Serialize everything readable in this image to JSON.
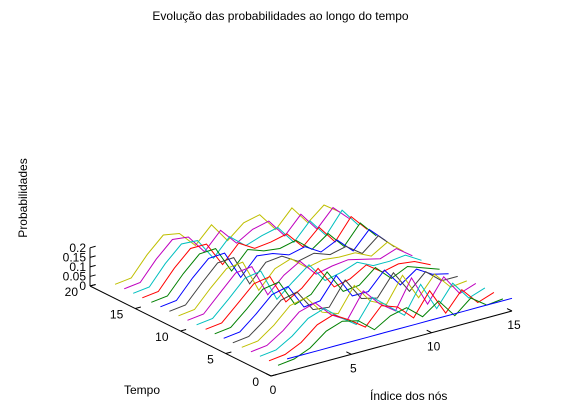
{
  "chart_data": {
    "type": "line",
    "projection": "3d",
    "title": "Evolução das probabilidades ao longo do tempo",
    "xlabel": "Índice dos nós",
    "ylabel": "Tempo",
    "zlabel": "Probabilidades",
    "xlim": [
      0,
      15
    ],
    "ylim": [
      0,
      20
    ],
    "zlim": [
      0,
      0.2
    ],
    "x_ticks": [
      "0",
      "5",
      "10",
      "15"
    ],
    "y_ticks": [
      "0",
      "5",
      "10",
      "15",
      "20"
    ],
    "z_ticks": [
      "0",
      "0.05",
      "0.1",
      "0.15",
      "0.2"
    ],
    "grid": false,
    "x": [
      1,
      2,
      3,
      4,
      5,
      6,
      7,
      8,
      9,
      10,
      11,
      12,
      13,
      14,
      15
    ],
    "series_colors": [
      "#0000ff",
      "#008000",
      "#ff0000",
      "#00bfbf",
      "#bf00bf",
      "#bfbf00",
      "#404040"
    ],
    "series": [
      {
        "t": 0,
        "values": [
          0.0667,
          0.0667,
          0.0667,
          0.0667,
          0.0667,
          0.0667,
          0.0667,
          0.0667,
          0.0667,
          0.0667,
          0.0667,
          0.0667,
          0.0667,
          0.0667,
          0.0667
        ]
      },
      {
        "t": 1,
        "values": [
          0.01,
          0.02,
          0.055,
          0.12,
          0.15,
          0.13,
          0.06,
          0.11,
          0.13,
          0.06,
          0.12,
          0.02,
          0.09,
          0.03,
          0.04
        ]
      },
      {
        "t": 2,
        "values": [
          0.01,
          0.02,
          0.06,
          0.13,
          0.16,
          0.11,
          0.05,
          0.14,
          0.11,
          0.03,
          0.15,
          0.01,
          0.11,
          0.02,
          0.05
        ]
      },
      {
        "t": 3,
        "values": [
          0.01,
          0.02,
          0.07,
          0.14,
          0.17,
          0.1,
          0.04,
          0.16,
          0.09,
          0.02,
          0.16,
          0.01,
          0.12,
          0.02,
          0.05
        ]
      },
      {
        "t": 4,
        "values": [
          0.01,
          0.02,
          0.075,
          0.15,
          0.175,
          0.09,
          0.04,
          0.17,
          0.08,
          0.02,
          0.17,
          0.01,
          0.13,
          0.02,
          0.05
        ]
      },
      {
        "t": 5,
        "values": [
          0.01,
          0.02,
          0.08,
          0.16,
          0.18,
          0.08,
          0.05,
          0.175,
          0.07,
          0.03,
          0.16,
          0.02,
          0.12,
          0.03,
          0.04
        ]
      },
      {
        "t": 6,
        "values": [
          0.01,
          0.02,
          0.085,
          0.165,
          0.185,
          0.07,
          0.06,
          0.18,
          0.06,
          0.04,
          0.15,
          0.03,
          0.11,
          0.04,
          0.04
        ]
      },
      {
        "t": 7,
        "values": [
          0.01,
          0.02,
          0.09,
          0.17,
          0.19,
          0.06,
          0.07,
          0.18,
          0.05,
          0.05,
          0.14,
          0.04,
          0.1,
          0.05,
          0.03
        ]
      },
      {
        "t": 8,
        "values": [
          0.01,
          0.02,
          0.095,
          0.175,
          0.19,
          0.05,
          0.08,
          0.175,
          0.05,
          0.06,
          0.13,
          0.05,
          0.09,
          0.06,
          0.03
        ]
      },
      {
        "t": 9,
        "values": [
          0.01,
          0.02,
          0.1,
          0.18,
          0.195,
          0.04,
          0.09,
          0.17,
          0.05,
          0.07,
          0.12,
          0.06,
          0.08,
          0.07,
          0.03
        ]
      },
      {
        "t": 10,
        "values": [
          0.01,
          0.02,
          0.1,
          0.185,
          0.2,
          0.03,
          0.1,
          0.165,
          0.06,
          0.08,
          0.11,
          0.07,
          0.07,
          0.08,
          0.03
        ]
      },
      {
        "t": 11,
        "values": [
          0.01,
          0.02,
          0.105,
          0.19,
          0.2,
          0.03,
          0.11,
          0.16,
          0.07,
          0.09,
          0.1,
          0.08,
          0.06,
          0.09,
          0.03
        ]
      },
      {
        "t": 12,
        "values": [
          0.01,
          0.02,
          0.11,
          0.19,
          0.2,
          0.03,
          0.12,
          0.15,
          0.08,
          0.1,
          0.09,
          0.09,
          0.05,
          0.1,
          0.03
        ]
      },
      {
        "t": 13,
        "values": [
          0.01,
          0.02,
          0.11,
          0.195,
          0.2,
          0.04,
          0.13,
          0.14,
          0.09,
          0.11,
          0.08,
          0.1,
          0.04,
          0.11,
          0.03
        ]
      },
      {
        "t": 14,
        "values": [
          0.01,
          0.02,
          0.115,
          0.195,
          0.2,
          0.05,
          0.14,
          0.13,
          0.1,
          0.12,
          0.07,
          0.11,
          0.03,
          0.12,
          0.04
        ]
      },
      {
        "t": 15,
        "values": [
          0.01,
          0.02,
          0.115,
          0.195,
          0.2,
          0.06,
          0.15,
          0.12,
          0.11,
          0.13,
          0.06,
          0.12,
          0.03,
          0.13,
          0.04
        ]
      },
      {
        "t": 16,
        "values": [
          0.01,
          0.02,
          0.12,
          0.2,
          0.2,
          0.07,
          0.16,
          0.11,
          0.12,
          0.14,
          0.05,
          0.13,
          0.03,
          0.14,
          0.05
        ]
      },
      {
        "t": 17,
        "values": [
          0.01,
          0.02,
          0.12,
          0.2,
          0.195,
          0.08,
          0.17,
          0.1,
          0.13,
          0.15,
          0.05,
          0.14,
          0.04,
          0.15,
          0.05
        ]
      },
      {
        "t": 18,
        "values": [
          0.01,
          0.02,
          0.12,
          0.2,
          0.19,
          0.09,
          0.18,
          0.09,
          0.14,
          0.16,
          0.06,
          0.15,
          0.05,
          0.14,
          0.06
        ]
      },
      {
        "t": 19,
        "values": [
          0.01,
          0.02,
          0.12,
          0.2,
          0.185,
          0.1,
          0.185,
          0.08,
          0.15,
          0.17,
          0.07,
          0.16,
          0.06,
          0.13,
          0.07
        ]
      }
    ]
  }
}
